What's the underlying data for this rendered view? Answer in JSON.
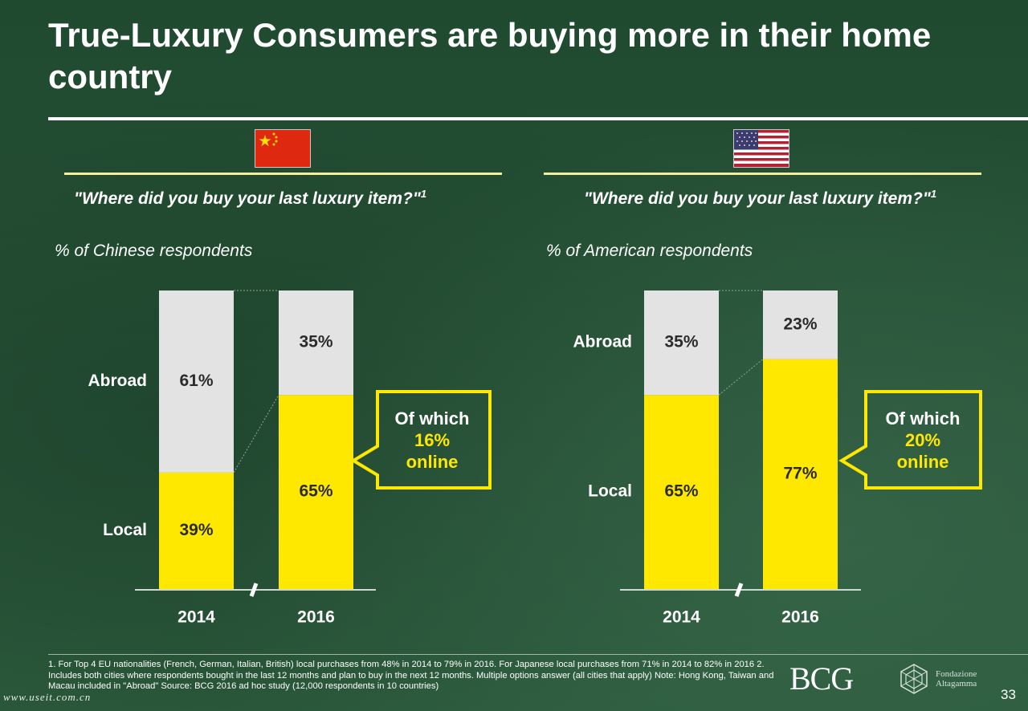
{
  "title": "True-Luxury Consumers are buying more in their home country",
  "panels": [
    {
      "country_flag_icon": "china-flag-icon",
      "question": "\"Where did you buy your last luxury item?\"",
      "question_sup": "1",
      "respondents": "% of Chinese respondents",
      "callout": {
        "line1": "Of which",
        "line2": "16%",
        "line3": "online"
      }
    },
    {
      "country_flag_icon": "usa-flag-icon",
      "question": "\"Where did you buy your last luxury item?\"",
      "question_sup": "1",
      "respondents": "% of  American respondents",
      "callout": {
        "line1": "Of which",
        "line2": "20%",
        "line3": "online"
      }
    }
  ],
  "chart_data": [
    {
      "type": "bar",
      "stacked": true,
      "categories": [
        "2014",
        "2016"
      ],
      "series": [
        {
          "name": "Local",
          "values": [
            39,
            65
          ],
          "labels": [
            "39%",
            "65%"
          ],
          "color": "#ffe800"
        },
        {
          "name": "Abroad",
          "values": [
            61,
            35
          ],
          "labels": [
            "61%",
            "35%"
          ],
          "color": "#e3e3e3"
        }
      ],
      "row_labels_on": 0,
      "ylim": [
        0,
        100
      ]
    },
    {
      "type": "bar",
      "stacked": true,
      "categories": [
        "2014",
        "2016"
      ],
      "series": [
        {
          "name": "Local",
          "values": [
            65,
            77
          ],
          "labels": [
            "65%",
            "77%"
          ],
          "color": "#ffe800"
        },
        {
          "name": "Abroad",
          "values": [
            35,
            23
          ],
          "labels": [
            "35%",
            "23%"
          ],
          "color": "#e3e3e3"
        }
      ],
      "row_labels_on": 0,
      "ylim": [
        0,
        100
      ]
    }
  ],
  "footnote": "1. For Top 4 EU nationalities (French, German, Italian, British) local purchases from 48% in 2014 to 79% in 2016. For Japanese local purchases from 71% in 2014 to 82% in 2016     2. Includes both cities where respondents bought in the last 12 months and plan to buy in the next 12 months. Multiple options answer (all cities that apply)  Note: Hong Kong, Taiwan and Macau included in \"Abroad\" Source: BCG 2016 ad hoc study (12,000 respondents in 10 countries)",
  "logo_bcg": "BCG",
  "logo_fondazione": "Fondazione Altagamma",
  "page_number": "33",
  "watermark": "www.useit.com.cn",
  "colors": {
    "background": "#264d35",
    "local": "#ffe800",
    "abroad": "#e3e3e3",
    "accent_rule": "#f4efa0"
  }
}
